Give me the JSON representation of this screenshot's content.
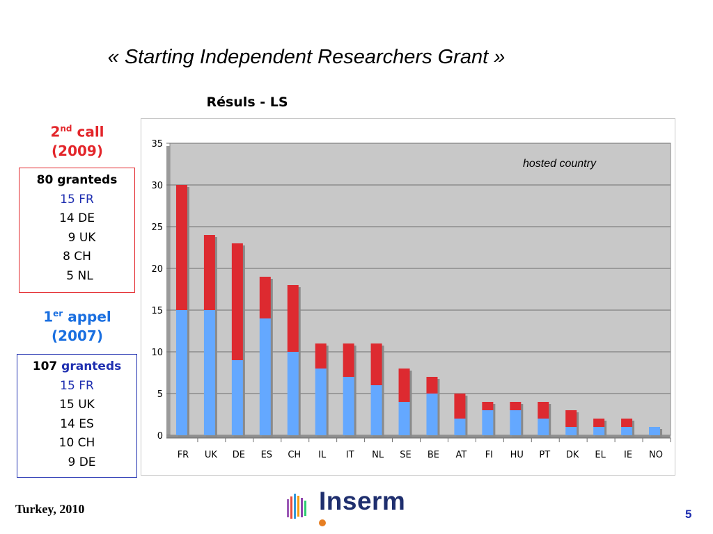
{
  "slide": {
    "title": "« Starting Independent Researchers Grant »",
    "footer": "Turkey, 2010",
    "page_number": "5",
    "logo_text": "Inserm"
  },
  "call2": {
    "heading_number": "2",
    "heading_sup": "nd",
    "heading_word": " call",
    "year": "(2009)",
    "total": "80  granteds",
    "lines": [
      "15 FR",
      "14 DE",
      "9 UK",
      "8 CH",
      "5 NL"
    ]
  },
  "call1": {
    "heading_number": "1",
    "heading_sup": "er",
    "heading_word": " appel",
    "year": "(2007)",
    "total_number": "107",
    "total_word": " granteds",
    "lines": [
      "15 FR",
      "15 UK",
      "14 ES",
      "10 CH",
      "9 DE"
    ]
  },
  "colors": {
    "red": "#e3262b",
    "blue": "#1f2fb0",
    "bar_blue": "#64a8ff",
    "bar_red": "#dd2a30",
    "plot_bg": "#c8c8c8"
  },
  "chart_data": {
    "type": "bar",
    "stacked": true,
    "title": "Résuls - LS",
    "annotation": "hosted country",
    "categories": [
      "FR",
      "UK",
      "DE",
      "ES",
      "CH",
      "IL",
      "IT",
      "NL",
      "SE",
      "BE",
      "AT",
      "FI",
      "HU",
      "PT",
      "DK",
      "EL",
      "IE",
      "NO"
    ],
    "series": [
      {
        "values": [
          15,
          15,
          9,
          14,
          10,
          8,
          7,
          6,
          4,
          5,
          2,
          3,
          3,
          2,
          1,
          1,
          1,
          1
        ]
      },
      {
        "values": [
          15,
          9,
          14,
          5,
          8,
          3,
          4,
          5,
          4,
          2,
          3,
          1,
          1,
          2,
          2,
          1,
          1,
          0
        ]
      }
    ],
    "ylim": [
      0,
      35
    ],
    "yticks": [
      "0",
      "5",
      "10",
      "15",
      "20",
      "25",
      "30",
      "35"
    ],
    "grid": true
  }
}
